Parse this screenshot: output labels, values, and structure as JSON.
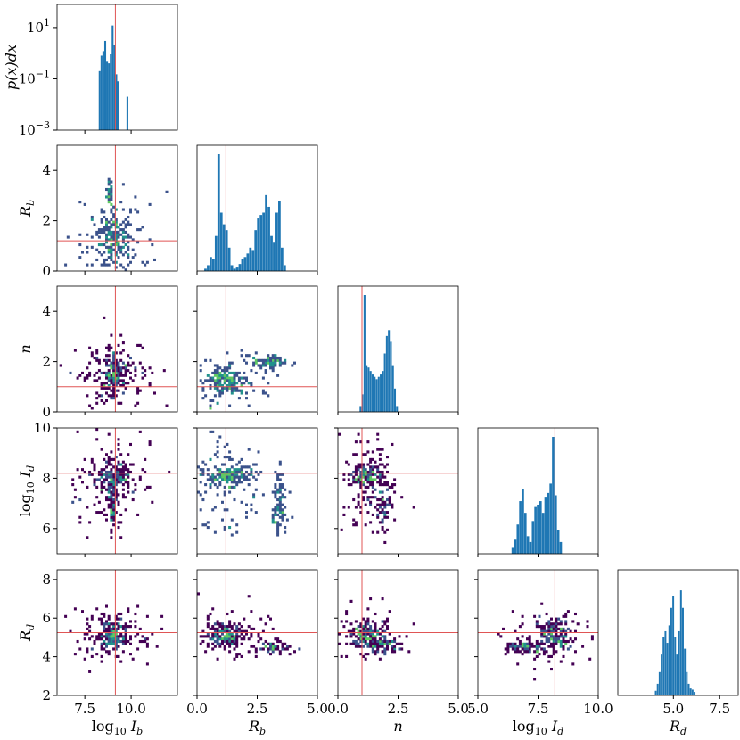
{
  "chart_data": {
    "type": "corner",
    "parameters": [
      {
        "key": "logIb",
        "label": "log10 Ib",
        "range": [
          6.0,
          12.5
        ],
        "truth": 9.15,
        "ticks": [
          {
            "v": 7.5,
            "t": "7.5"
          },
          {
            "v": 10.0,
            "t": "10.0"
          }
        ]
      },
      {
        "key": "Rb",
        "label": "Rb",
        "range": [
          0.0,
          5.0
        ],
        "truth": 1.2,
        "ticks": [
          {
            "v": 0,
            "t": "0"
          },
          {
            "v": 2,
            "t": "2"
          },
          {
            "v": 4,
            "t": "4"
          }
        ],
        "xticks": [
          {
            "v": 0.0,
            "t": "0.0"
          },
          {
            "v": 2.5,
            "t": "2.5"
          },
          {
            "v": 5.0,
            "t": "5.0"
          }
        ]
      },
      {
        "key": "n",
        "label": "n",
        "range": [
          0.0,
          5.0
        ],
        "truth": 1.0,
        "ticks": [
          {
            "v": 0,
            "t": "0"
          },
          {
            "v": 2,
            "t": "2"
          },
          {
            "v": 4,
            "t": "4"
          }
        ],
        "xticks": [
          {
            "v": 0.0,
            "t": "0.0"
          },
          {
            "v": 2.5,
            "t": "2.5"
          },
          {
            "v": 5.0,
            "t": "5.0"
          }
        ]
      },
      {
        "key": "logId",
        "label": "log10 Id",
        "range": [
          5.0,
          10.0
        ],
        "truth": 8.2,
        "ticks": [
          {
            "v": 6,
            "t": "6"
          },
          {
            "v": 8,
            "t": "8"
          },
          {
            "v": 10,
            "t": "10"
          }
        ],
        "xticks": [
          {
            "v": 5.0,
            "t": "5.0"
          },
          {
            "v": 7.5,
            "t": "7.5"
          },
          {
            "v": 10.0,
            "t": "10.0"
          }
        ]
      },
      {
        "key": "Rd",
        "label": "Rd",
        "range": [
          2.0,
          8.5
        ],
        "truth": 5.25,
        "ticks": [
          {
            "v": 2,
            "t": "2"
          },
          {
            "v": 4,
            "t": "4"
          },
          {
            "v": 6,
            "t": "6"
          },
          {
            "v": 8,
            "t": "8"
          }
        ],
        "xticks": [
          {
            "v": 5.0,
            "t": "5.0"
          },
          {
            "v": 7.5,
            "t": "7.5"
          }
        ]
      }
    ],
    "diag_ylabel": "p(x)dx",
    "diag_yticks": [
      {
        "exp": 1,
        "t": "10",
        "sup": "1"
      },
      {
        "exp": -1,
        "t": "10",
        "sup": "−1"
      },
      {
        "exp": -3,
        "t": "10",
        "sup": "−3"
      }
    ],
    "hist_color": "#1f77b4",
    "truth_color": "#e05555",
    "density_colors": [
      "#440154",
      "#3b528b",
      "#21918c",
      "#5ec962"
    ],
    "histograms": {
      "logIb": [
        {
          "x": 8.3,
          "h": 0.02
        },
        {
          "x": 8.4,
          "h": 0.08
        },
        {
          "x": 8.5,
          "h": 0.12
        },
        {
          "x": 8.6,
          "h": 0.3
        },
        {
          "x": 8.7,
          "h": 0.05
        },
        {
          "x": 8.8,
          "h": 0.04
        },
        {
          "x": 8.9,
          "h": 0.09
        },
        {
          "x": 9.0,
          "h": 1.2
        },
        {
          "x": 9.1,
          "h": 0.2
        },
        {
          "x": 9.2,
          "h": 0.015
        },
        {
          "x": 9.3,
          "h": 0.008
        },
        {
          "x": 9.8,
          "h": 0.002
        }
      ],
      "Rb": [
        0.02,
        0.05,
        0.12,
        0.1,
        0.3,
        1,
        0.5,
        0.4,
        0.35,
        0.2,
        0.05,
        0.02,
        0.03,
        0.06,
        0.1,
        0.12,
        0.15,
        0.2,
        0.18,
        0.35,
        0.45,
        0.48,
        0.5,
        0.65,
        0.55,
        0.3,
        0.25,
        0.5,
        0.6,
        0.2,
        0.05
      ],
      "n": [
        0.05,
        0.15,
        1,
        0.4,
        0.38,
        0.35,
        0.32,
        0.3,
        0.28,
        0.3,
        0.32,
        0.35,
        0.5,
        0.65,
        0.7,
        0.6,
        0.4,
        0.2,
        0.05
      ],
      "logId": [
        0.05,
        0.12,
        0.25,
        0.45,
        0.55,
        0.35,
        0.15,
        0.1,
        0.28,
        0.4,
        0.42,
        0.45,
        0.35,
        0.48,
        0.52,
        0.6,
        1,
        0.5,
        0.2,
        0.1
      ],
      "Rd": [
        0.04,
        0.1,
        0.2,
        0.35,
        0.5,
        0.55,
        0.45,
        0.6,
        0.75,
        0.85,
        0.5,
        0.35,
        0.55,
        0.9,
        0.75,
        0.4,
        0.2,
        0.1,
        0.06,
        0.05,
        0.03
      ]
    },
    "hist_ranges": {
      "Rb": [
        0.3,
        3.7
      ],
      "n": [
        0.9,
        2.5
      ],
      "logId": [
        6.4,
        8.5
      ],
      "Rd": [
        4.0,
        6.2
      ]
    },
    "density_seeds": [
      [
        {
          "x": 8.9,
          "y": 1.4,
          "sx": 0.35,
          "sy": 0.5,
          "n": 40
        },
        {
          "x": 8.8,
          "y": 3.2,
          "sx": 0.1,
          "sy": 0.3,
          "n": 10
        },
        {
          "x": 9.2,
          "y": 1.0,
          "sx": 1.0,
          "sy": 0.9,
          "n": 45
        }
      ],
      [
        {
          "x": 9.0,
          "y": 1.4,
          "sx": 0.25,
          "sy": 0.4,
          "n": 40
        },
        {
          "x": 9.0,
          "y": 1.5,
          "sx": 1.0,
          "sy": 0.6,
          "n": 55
        }
      ],
      [
        {
          "x": 1.2,
          "y": 1.3,
          "sx": 0.4,
          "sy": 0.25,
          "n": 45
        },
        {
          "x": 3.0,
          "y": 2.0,
          "sx": 0.35,
          "sy": 0.12,
          "n": 25
        },
        {
          "x": 1.3,
          "y": 1.2,
          "sx": 0.8,
          "sy": 0.5,
          "n": 30
        }
      ],
      [
        {
          "x": 9.0,
          "y": 8.1,
          "sx": 0.6,
          "sy": 0.25,
          "n": 45
        },
        {
          "x": 8.95,
          "y": 6.8,
          "sx": 0.12,
          "sy": 0.5,
          "n": 20
        },
        {
          "x": 9.0,
          "y": 7.8,
          "sx": 1.2,
          "sy": 1.0,
          "n": 45
        }
      ],
      [
        {
          "x": 1.3,
          "y": 8.1,
          "sx": 0.5,
          "sy": 0.2,
          "n": 45
        },
        {
          "x": 3.4,
          "y": 6.8,
          "sx": 0.15,
          "sy": 0.6,
          "n": 25
        },
        {
          "x": 1.5,
          "y": 7.8,
          "sx": 0.9,
          "sy": 1.0,
          "n": 40
        }
      ],
      [
        {
          "x": 1.2,
          "y": 8.1,
          "sx": 0.4,
          "sy": 0.2,
          "n": 45
        },
        {
          "x": 1.9,
          "y": 6.8,
          "sx": 0.15,
          "sy": 0.5,
          "n": 20
        },
        {
          "x": 1.3,
          "y": 7.8,
          "sx": 0.6,
          "sy": 1.0,
          "n": 40
        }
      ],
      [
        {
          "x": 9.0,
          "y": 5.1,
          "sx": 0.3,
          "sy": 0.35,
          "n": 50
        },
        {
          "x": 9.0,
          "y": 5.1,
          "sx": 1.1,
          "sy": 0.8,
          "n": 45
        }
      ],
      [
        {
          "x": 1.2,
          "y": 5.1,
          "sx": 0.35,
          "sy": 0.3,
          "n": 50
        },
        {
          "x": 3.2,
          "y": 4.5,
          "sx": 0.35,
          "sy": 0.15,
          "n": 20
        },
        {
          "x": 1.5,
          "y": 5.1,
          "sx": 0.9,
          "sy": 0.7,
          "n": 30
        }
      ],
      [
        {
          "x": 1.2,
          "y": 5.1,
          "sx": 0.35,
          "sy": 0.35,
          "n": 50
        },
        {
          "x": 1.9,
          "y": 4.5,
          "sx": 0.3,
          "sy": 0.2,
          "n": 20
        },
        {
          "x": 1.5,
          "y": 5.1,
          "sx": 0.8,
          "sy": 0.7,
          "n": 30
        }
      ],
      [
        {
          "x": 8.2,
          "y": 5.1,
          "sx": 0.3,
          "sy": 0.4,
          "n": 45
        },
        {
          "x": 6.9,
          "y": 4.5,
          "sx": 0.4,
          "sy": 0.15,
          "n": 25
        },
        {
          "x": 7.8,
          "y": 5.0,
          "sx": 0.9,
          "sy": 0.7,
          "n": 35
        }
      ]
    ]
  }
}
